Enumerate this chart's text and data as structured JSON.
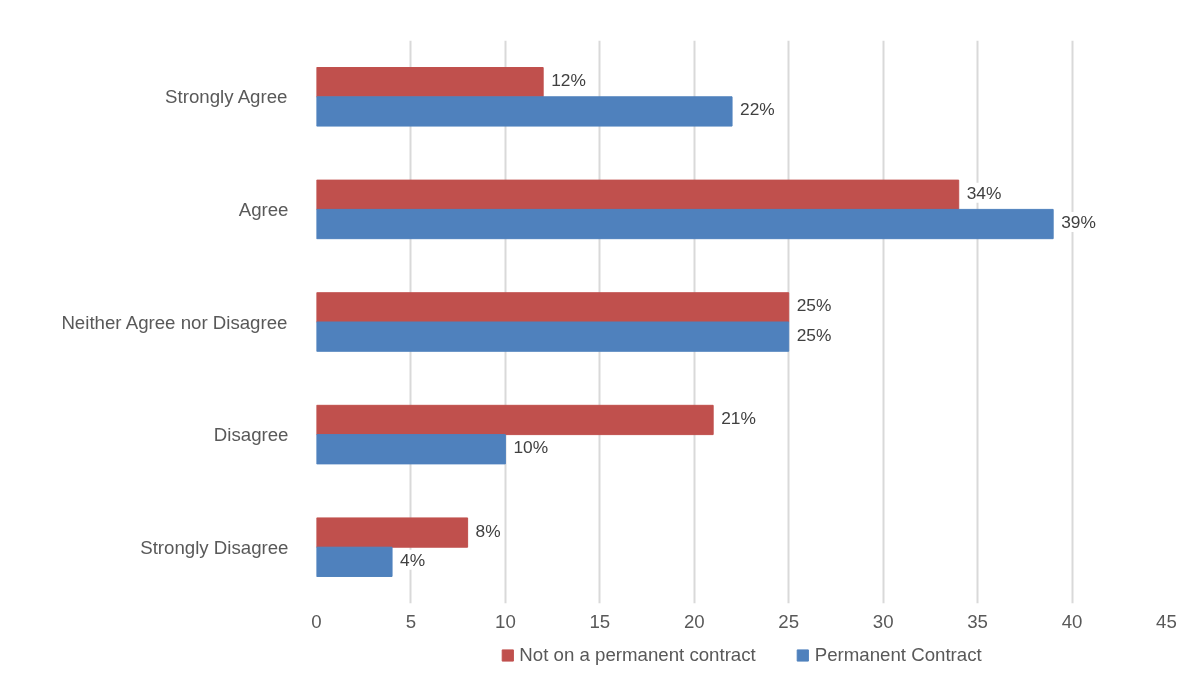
{
  "chart_data": {
    "type": "bar",
    "orientation": "horizontal",
    "categories": [
      "Strongly Agree",
      "Agree",
      "Neither Agree nor Disagree",
      "Disagree",
      "Strongly Disagree"
    ],
    "series": [
      {
        "name": "Not on a permanent contract",
        "color": "#c0504d",
        "values": [
          12,
          34,
          25,
          21,
          8
        ],
        "value_labels": [
          "12%",
          "34%",
          "25%",
          "21%",
          "8%"
        ]
      },
      {
        "name": "Permanent Contract",
        "color": "#4f81bd",
        "values": [
          22,
          39,
          25,
          10,
          4
        ],
        "value_labels": [
          "22%",
          "39%",
          "25%",
          "10%",
          "4%"
        ]
      }
    ],
    "xlim": [
      0,
      45
    ],
    "xticks": [
      0,
      5,
      10,
      15,
      20,
      25,
      30,
      35,
      40,
      45
    ],
    "grid": "x",
    "legend": "bottom"
  }
}
